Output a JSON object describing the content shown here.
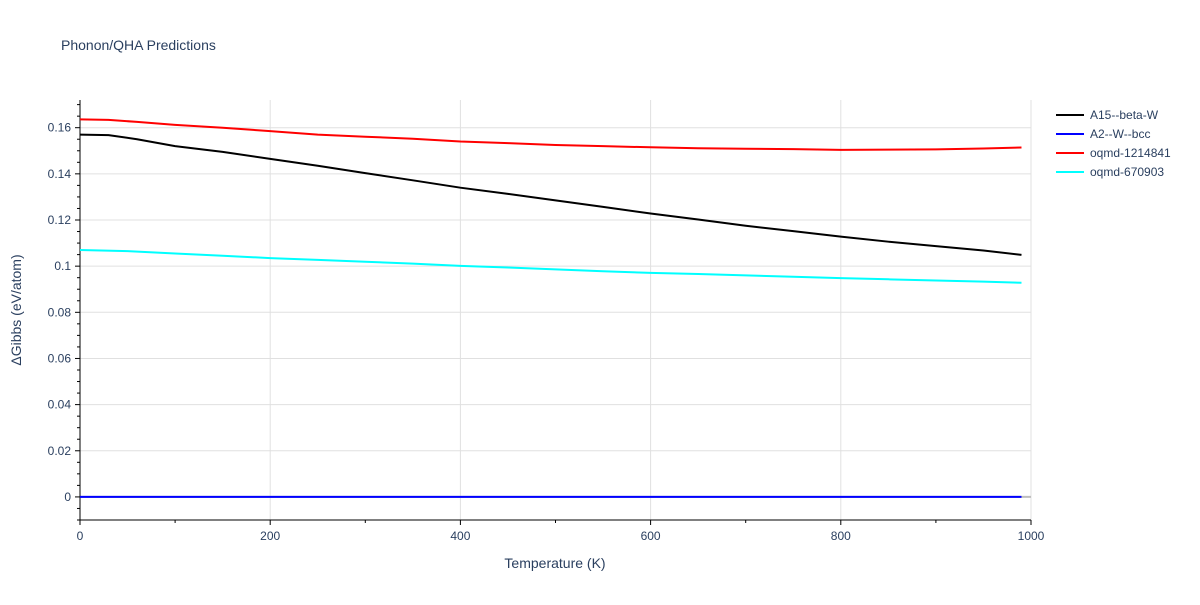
{
  "chart_data": {
    "type": "line",
    "title": "Phonon/QHA Predictions",
    "xlabel": "Temperature (K)",
    "ylabel": "ΔGibbs (eV/atom)",
    "xlim": [
      0,
      1000
    ],
    "ylim": [
      -0.01,
      0.172
    ],
    "xticks": [
      0,
      200,
      400,
      600,
      800,
      1000
    ],
    "xtick_labels": [
      "0",
      "200",
      "400",
      "600",
      "800",
      "1000"
    ],
    "yticks": [
      0,
      0.02,
      0.04,
      0.06,
      0.08,
      0.1,
      0.12,
      0.14,
      0.16
    ],
    "ytick_labels": [
      "0",
      "0.02",
      "0.04",
      "0.06",
      "0.08",
      "0.1",
      "0.12",
      "0.14",
      "0.16"
    ],
    "grid": true,
    "legend_position": "top-right",
    "series": [
      {
        "name": "A15--beta-W",
        "color": "#000000",
        "x": [
          0,
          30,
          60,
          100,
          150,
          200,
          250,
          300,
          350,
          400,
          450,
          500,
          550,
          600,
          650,
          700,
          750,
          800,
          850,
          900,
          950,
          990
        ],
        "y": [
          0.157,
          0.1568,
          0.155,
          0.152,
          0.1495,
          0.1465,
          0.1435,
          0.1403,
          0.1372,
          0.134,
          0.1313,
          0.1285,
          0.1257,
          0.1228,
          0.1202,
          0.1175,
          0.1152,
          0.1128,
          0.1106,
          0.1087,
          0.1068,
          0.1049
        ]
      },
      {
        "name": "A2--W--bcc",
        "color": "#0000ff",
        "x": [
          0,
          990
        ],
        "y": [
          0,
          0
        ]
      },
      {
        "name": "oqmd-1214841",
        "color": "#ff0000",
        "x": [
          0,
          30,
          60,
          100,
          150,
          200,
          250,
          300,
          350,
          400,
          450,
          500,
          550,
          600,
          650,
          700,
          750,
          800,
          850,
          900,
          950,
          990
        ],
        "y": [
          0.1636,
          0.1634,
          0.1625,
          0.1612,
          0.16,
          0.1585,
          0.157,
          0.1561,
          0.1552,
          0.154,
          0.1533,
          0.1525,
          0.152,
          0.1515,
          0.1511,
          0.1509,
          0.1507,
          0.1504,
          0.1505,
          0.1506,
          0.151,
          0.1514
        ]
      },
      {
        "name": "oqmd-670903",
        "color": "#00ffff",
        "x": [
          0,
          50,
          100,
          150,
          200,
          250,
          300,
          350,
          400,
          450,
          500,
          550,
          600,
          650,
          700,
          750,
          800,
          850,
          900,
          950,
          990
        ],
        "y": [
          0.107,
          0.1065,
          0.1055,
          0.1045,
          0.1035,
          0.1027,
          0.1019,
          0.1011,
          0.1001,
          0.0994,
          0.0986,
          0.0978,
          0.0971,
          0.0966,
          0.096,
          0.0954,
          0.0948,
          0.0943,
          0.0938,
          0.0933,
          0.0928
        ]
      }
    ]
  }
}
